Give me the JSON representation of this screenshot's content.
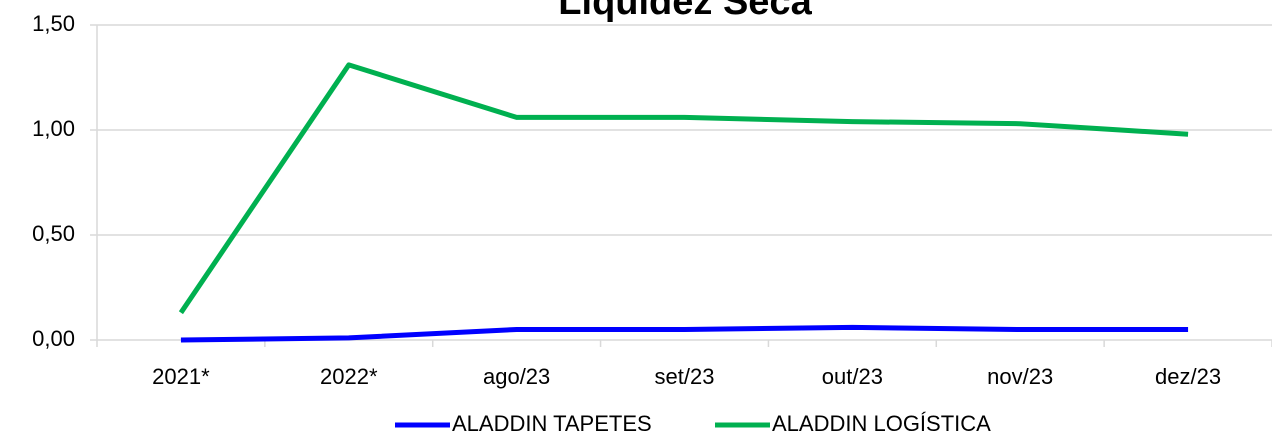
{
  "chart_data": {
    "type": "line",
    "title": "Liquidez Seca",
    "categories": [
      "2021*",
      "2022*",
      "ago/23",
      "set/23",
      "out/23",
      "nov/23",
      "dez/23"
    ],
    "series": [
      {
        "name": "ALADDIN TAPETES",
        "color": "#0000ff",
        "values": [
          0.0,
          0.01,
          0.05,
          0.05,
          0.06,
          0.05,
          0.05
        ]
      },
      {
        "name": "ALADDIN LOGÍSTICA",
        "color": "#00b050",
        "values": [
          0.13,
          1.31,
          1.06,
          1.06,
          1.04,
          1.03,
          0.98
        ]
      }
    ],
    "ylim": [
      0,
      1.5
    ],
    "yticks": [
      {
        "value": 0,
        "label": "0,00"
      },
      {
        "value": 0.5,
        "label": "0,50"
      },
      {
        "value": 1.0,
        "label": "1,00"
      },
      {
        "value": 1.5,
        "label": "1,50"
      }
    ],
    "grid": true,
    "legend": "bottom"
  }
}
